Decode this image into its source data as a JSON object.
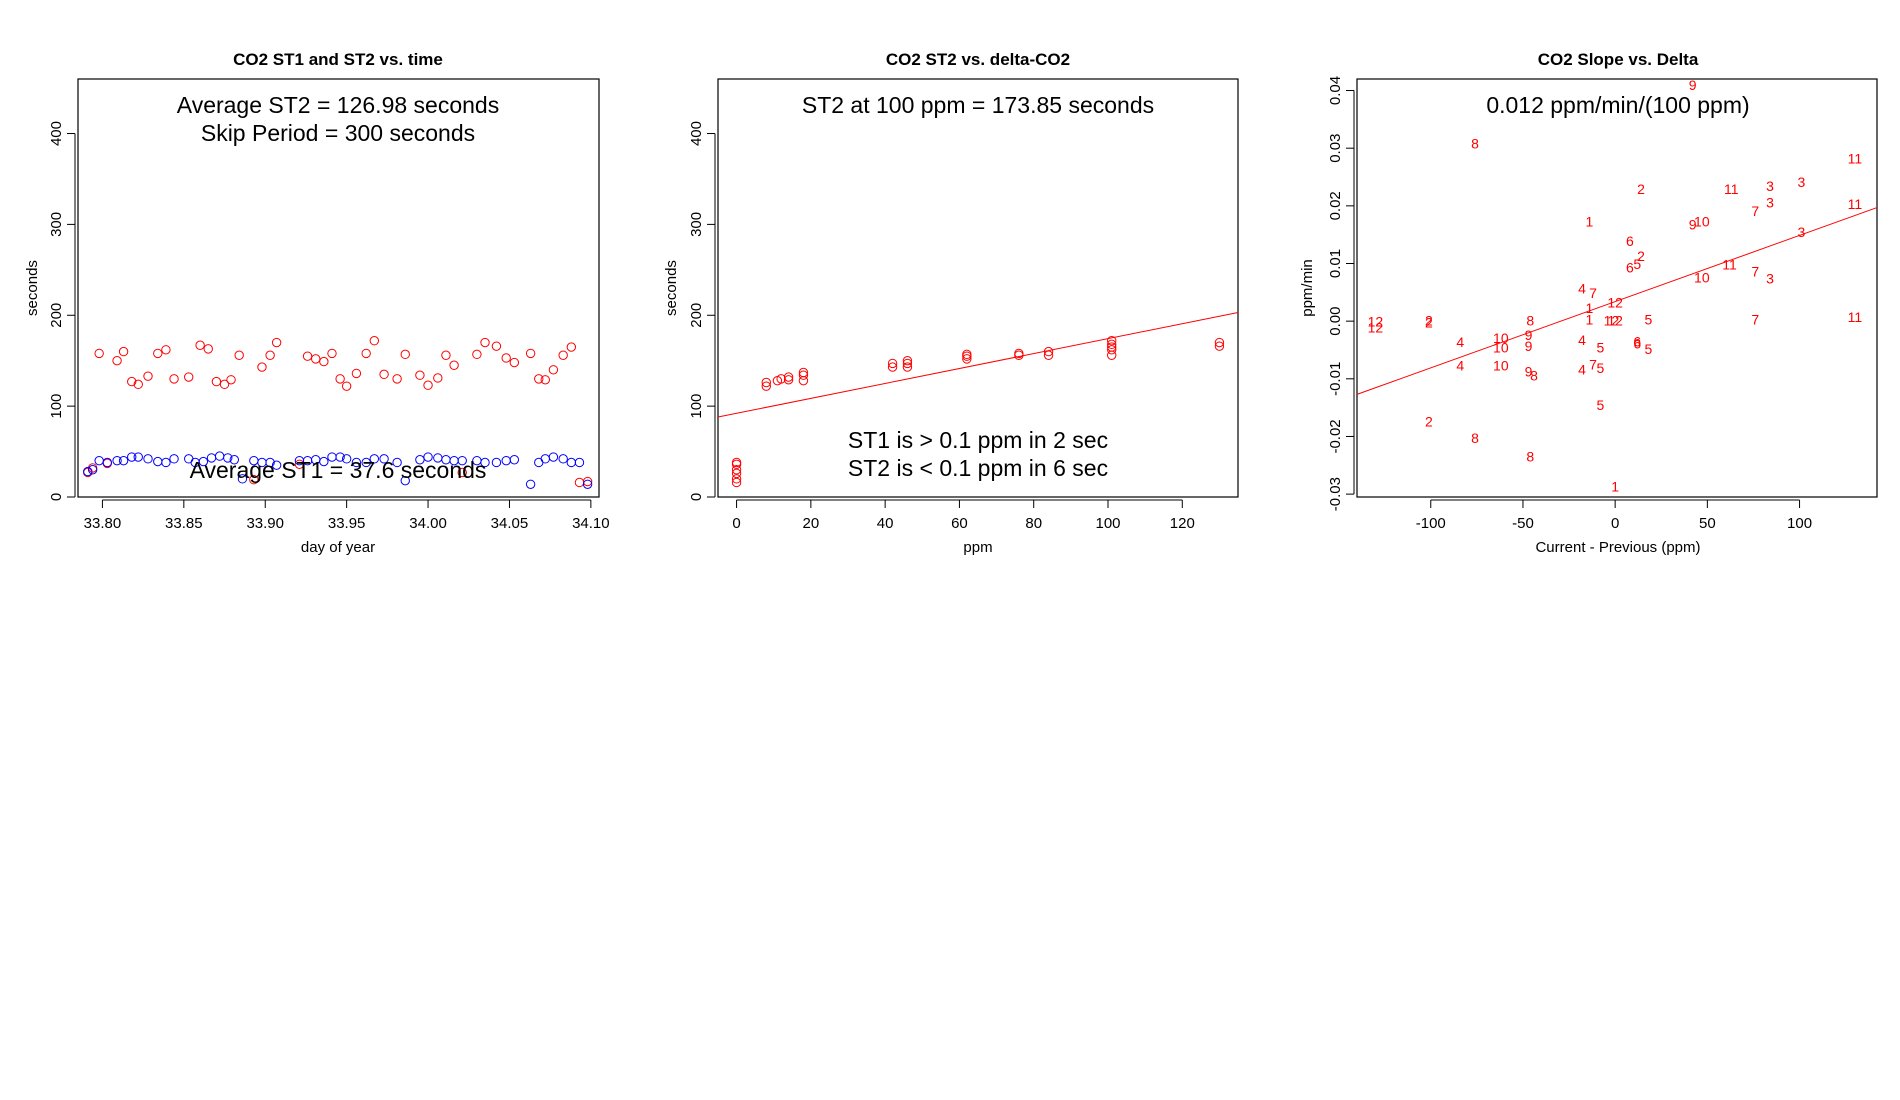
{
  "chart_data": [
    {
      "type": "scatter",
      "title": "CO2 ST1 and ST2 vs. time",
      "xlabel": "day of year",
      "ylabel": "seconds",
      "xlim": [
        33.785,
        34.105
      ],
      "ylim": [
        0,
        460
      ],
      "xticks": [
        33.8,
        33.85,
        33.9,
        33.95,
        34.0,
        34.05,
        34.1
      ],
      "xtick_labels": [
        "33.80",
        "33.85",
        "33.90",
        "33.95",
        "34.00",
        "34.05",
        "34.10"
      ],
      "yticks": [
        0,
        100,
        200,
        300,
        400
      ],
      "ytick_labels": [
        "0",
        "100",
        "200",
        "300",
        "400"
      ],
      "annotations": [
        "Average ST2 =  126.98  seconds",
        "Skip Period =  300  seconds",
        "Average ST1 =  37.6  seconds"
      ],
      "series": [
        {
          "name": "ST2",
          "color": "#ff0000",
          "marker": "circle",
          "x": [
            33.791,
            33.794,
            33.798,
            33.803,
            33.809,
            33.813,
            33.818,
            33.822,
            33.828,
            33.834,
            33.839,
            33.844,
            33.853,
            33.86,
            33.865,
            33.87,
            33.875,
            33.879,
            33.884,
            33.893,
            33.898,
            33.903,
            33.907,
            33.921,
            33.926,
            33.931,
            33.936,
            33.941,
            33.946,
            33.95,
            33.956,
            33.962,
            33.967,
            33.973,
            33.981,
            33.986,
            33.995,
            34.0,
            34.006,
            34.011,
            34.016,
            34.021,
            34.03,
            34.035,
            34.042,
            34.048,
            34.053,
            34.063,
            34.068,
            34.072,
            34.077,
            34.083,
            34.088,
            34.093,
            34.098
          ],
          "y": [
            27,
            32,
            158,
            37,
            150,
            160,
            127,
            124,
            133,
            158,
            162,
            130,
            132,
            167,
            163,
            127,
            124,
            129,
            156,
            19,
            143,
            156,
            170,
            36,
            155,
            152,
            149,
            158,
            130,
            122,
            136,
            158,
            172,
            135,
            130,
            157,
            134,
            123,
            131,
            156,
            145,
            27,
            157,
            170,
            166,
            153,
            148,
            158,
            130,
            129,
            140,
            156,
            165,
            16,
            17
          ]
        },
        {
          "name": "ST1",
          "color": "#0000ff",
          "marker": "circle",
          "x": [
            33.791,
            33.794,
            33.798,
            33.803,
            33.809,
            33.813,
            33.818,
            33.822,
            33.828,
            33.834,
            33.839,
            33.844,
            33.853,
            33.857,
            33.862,
            33.867,
            33.872,
            33.877,
            33.881,
            33.886,
            33.893,
            33.898,
            33.903,
            33.907,
            33.921,
            33.926,
            33.931,
            33.936,
            33.941,
            33.946,
            33.95,
            33.956,
            33.962,
            33.967,
            33.973,
            33.981,
            33.986,
            33.995,
            34.0,
            34.006,
            34.011,
            34.016,
            34.021,
            34.03,
            34.035,
            34.042,
            34.048,
            34.053,
            34.063,
            34.068,
            34.072,
            34.077,
            34.083,
            34.088,
            34.093,
            34.098
          ],
          "y": [
            28,
            30,
            40,
            38,
            40,
            40,
            44,
            44,
            42,
            39,
            38,
            42,
            42,
            38,
            39,
            43,
            45,
            43,
            41,
            20,
            40,
            38,
            38,
            35,
            40,
            40,
            41,
            39,
            44,
            44,
            42,
            38,
            38,
            42,
            42,
            38,
            18,
            41,
            44,
            43,
            41,
            40,
            40,
            40,
            38,
            38,
            40,
            41,
            14,
            38,
            42,
            44,
            42,
            38,
            38,
            14
          ]
        }
      ]
    },
    {
      "type": "scatter",
      "title": "CO2 ST2 vs. delta-CO2",
      "xlabel": "ppm",
      "ylabel": "seconds",
      "xlim": [
        -5,
        135
      ],
      "ylim": [
        0,
        460
      ],
      "xticks": [
        0,
        20,
        40,
        60,
        80,
        100,
        120
      ],
      "xtick_labels": [
        "0",
        "20",
        "40",
        "60",
        "80",
        "100",
        "120"
      ],
      "yticks": [
        0,
        100,
        200,
        300,
        400
      ],
      "ytick_labels": [
        "0",
        "100",
        "200",
        "300",
        "400"
      ],
      "annotations": [
        "ST2 at 100 ppm =  173.85  seconds",
        "ST1 is > 0.1 ppm in 2 sec",
        "ST2 is < 0.1 ppm in 6 sec"
      ],
      "fit_line": {
        "color": "#ff0000",
        "x": [
          -5,
          135
        ],
        "y": [
          88,
          203
        ]
      },
      "series": [
        {
          "name": "ST2",
          "color": "#ff0000",
          "marker": "circle",
          "x": [
            0,
            0,
            0,
            0,
            0,
            0,
            8,
            8,
            11,
            12,
            14,
            14,
            18,
            18,
            18,
            42,
            42,
            46,
            46,
            46,
            62,
            62,
            62,
            76,
            76,
            84,
            84,
            101,
            101,
            101,
            101,
            101,
            130,
            130
          ],
          "y": [
            16,
            20,
            26,
            30,
            36,
            38,
            122,
            126,
            128,
            130,
            129,
            132,
            128,
            134,
            137,
            143,
            147,
            143,
            147,
            150,
            152,
            155,
            157,
            156,
            158,
            156,
            160,
            156,
            162,
            165,
            168,
            172,
            166,
            170
          ]
        }
      ]
    },
    {
      "type": "scatter",
      "title": "CO2 Slope vs. Delta",
      "xlabel": "Current - Previous (ppm)",
      "ylabel": "ppm/min",
      "xlim": [
        -140,
        142
      ],
      "ylim": [
        -0.0305,
        0.042
      ],
      "xticks": [
        -100,
        -50,
        0,
        50,
        100
      ],
      "xtick_labels": [
        "-100",
        "-50",
        "0",
        "50",
        "100"
      ],
      "yticks": [
        -0.03,
        -0.02,
        -0.01,
        0.0,
        0.01,
        0.02,
        0.03,
        0.04
      ],
      "ytick_labels": [
        "-0.03",
        "-0.02",
        "-0.01",
        "0.00",
        "0.01",
        "0.02",
        "0.03",
        "0.04"
      ],
      "annotations": [
        "0.012  ppm/min/(100 ppm)"
      ],
      "fit_line": {
        "color": "#ff0000",
        "x": [
          -140,
          142
        ],
        "y": [
          -0.0127,
          0.0197
        ]
      },
      "series": [
        {
          "name": "points",
          "color": "#ff0000",
          "marker": "label",
          "points": [
            {
              "x": 42,
              "y": 0.041,
              "label": "9"
            },
            {
              "x": -76,
              "y": 0.0308,
              "label": "8"
            },
            {
              "x": 14,
              "y": 0.0229,
              "label": "2"
            },
            {
              "x": 63,
              "y": 0.0229,
              "label": "11"
            },
            {
              "x": 84,
              "y": 0.0234,
              "label": "3"
            },
            {
              "x": 101,
              "y": 0.0241,
              "label": "3"
            },
            {
              "x": 130,
              "y": 0.0282,
              "label": "11"
            },
            {
              "x": 84,
              "y": 0.0206,
              "label": "3"
            },
            {
              "x": 76,
              "y": 0.0191,
              "label": "7"
            },
            {
              "x": 130,
              "y": 0.0203,
              "label": "11"
            },
            {
              "x": 47,
              "y": 0.0173,
              "label": "10"
            },
            {
              "x": 42,
              "y": 0.0168,
              "label": "9"
            },
            {
              "x": -14,
              "y": 0.0173,
              "label": "1"
            },
            {
              "x": 101,
              "y": 0.0155,
              "label": "3"
            },
            {
              "x": 8,
              "y": 0.0139,
              "label": "6"
            },
            {
              "x": 14,
              "y": 0.0113,
              "label": "2"
            },
            {
              "x": 12,
              "y": 0.0099,
              "label": "5"
            },
            {
              "x": 8,
              "y": 0.0093,
              "label": "6"
            },
            {
              "x": 62,
              "y": 0.0098,
              "label": "11"
            },
            {
              "x": 76,
              "y": 0.0086,
              "label": "7"
            },
            {
              "x": 84,
              "y": 0.0074,
              "label": "3"
            },
            {
              "x": 47,
              "y": 0.0076,
              "label": "10"
            },
            {
              "x": -18,
              "y": 0.0057,
              "label": "4"
            },
            {
              "x": -12,
              "y": 0.0049,
              "label": "7"
            },
            {
              "x": -14,
              "y": 0.0023,
              "label": "1"
            },
            {
              "x": 0,
              "y": 0.0032,
              "label": "12"
            },
            {
              "x": -14,
              "y": 0.0003,
              "label": "1"
            },
            {
              "x": 0,
              "y": 0.0001,
              "label": "12"
            },
            {
              "x": -2,
              "y": 0.0001,
              "label": "12"
            },
            {
              "x": 18,
              "y": 0.0003,
              "label": "5"
            },
            {
              "x": 76,
              "y": 0.0003,
              "label": "7"
            },
            {
              "x": 130,
              "y": 0.0007,
              "label": "11"
            },
            {
              "x": -130,
              "y": -0.0001,
              "label": "12"
            },
            {
              "x": -130,
              "y": -0.0011,
              "label": "12"
            },
            {
              "x": -101,
              "y": 0.0001,
              "label": "2"
            },
            {
              "x": -101,
              "y": -0.0002,
              "label": "2"
            },
            {
              "x": -84,
              "y": -0.0036,
              "label": "4"
            },
            {
              "x": -62,
              "y": -0.0029,
              "label": "10"
            },
            {
              "x": -62,
              "y": -0.0046,
              "label": "10"
            },
            {
              "x": -46,
              "y": 0.0001,
              "label": "8"
            },
            {
              "x": -47,
              "y": -0.0024,
              "label": "9"
            },
            {
              "x": -47,
              "y": -0.0043,
              "label": "9"
            },
            {
              "x": -18,
              "y": -0.0033,
              "label": "4"
            },
            {
              "x": -8,
              "y": -0.0046,
              "label": "5"
            },
            {
              "x": 12,
              "y": -0.0035,
              "label": "6"
            },
            {
              "x": 12,
              "y": -0.0039,
              "label": "6"
            },
            {
              "x": 18,
              "y": -0.0048,
              "label": "5"
            },
            {
              "x": -84,
              "y": -0.0077,
              "label": "4"
            },
            {
              "x": -62,
              "y": -0.0077,
              "label": "10"
            },
            {
              "x": -47,
              "y": -0.0087,
              "label": "9"
            },
            {
              "x": -44,
              "y": -0.0094,
              "label": "8"
            },
            {
              "x": -18,
              "y": -0.0084,
              "label": "4"
            },
            {
              "x": -12,
              "y": -0.0075,
              "label": "7"
            },
            {
              "x": -8,
              "y": -0.0081,
              "label": "5"
            },
            {
              "x": -8,
              "y": -0.0145,
              "label": "5"
            },
            {
              "x": -101,
              "y": -0.0174,
              "label": "2"
            },
            {
              "x": -76,
              "y": -0.0203,
              "label": "8"
            },
            {
              "x": -46,
              "y": -0.0235,
              "label": "8"
            },
            {
              "x": 0,
              "y": -0.0287,
              "label": "1"
            }
          ]
        }
      ]
    }
  ]
}
